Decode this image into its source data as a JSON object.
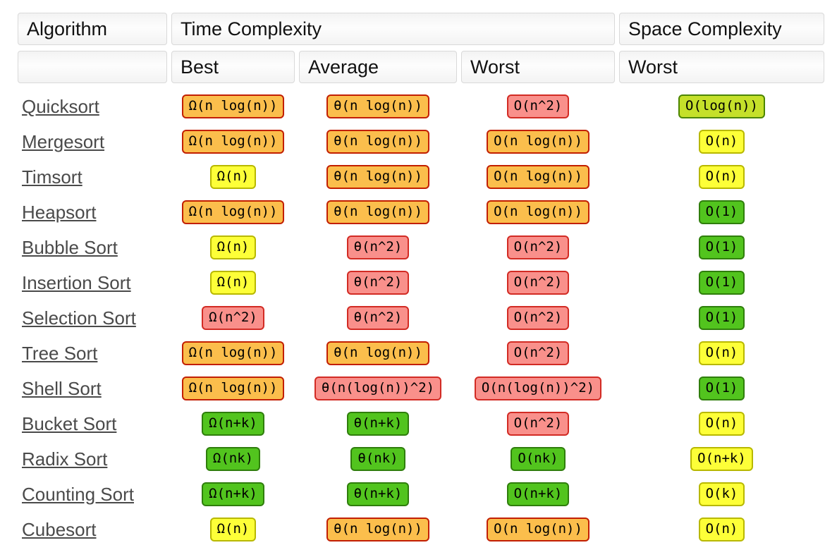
{
  "header": {
    "algorithm": "Algorithm",
    "time_complexity": "Time Complexity",
    "space_complexity": "Space Complexity",
    "sub_best": "Best",
    "sub_average": "Average",
    "sub_worst": "Worst",
    "sub_space_worst": "Worst"
  },
  "levels": {
    "green": {
      "bg": "#52c41e",
      "border": "#2f7e0c"
    },
    "yellowgreen": {
      "bg": "#c5e02a",
      "border": "#4c8500"
    },
    "yellow": {
      "bg": "#fdff38",
      "border": "#b8b800"
    },
    "orange": {
      "bg": "#fbbe4c",
      "border": "#c21f00"
    },
    "red": {
      "bg": "#f9908b",
      "border": "#d22b24"
    }
  },
  "rows": [
    {
      "name": "Quicksort",
      "best": {
        "text": "Ω(n log(n))",
        "level": "orange"
      },
      "average": {
        "text": "θ(n log(n))",
        "level": "orange"
      },
      "worst": {
        "text": "O(n^2)",
        "level": "red"
      },
      "space": {
        "text": "O(log(n))",
        "level": "yellowgreen"
      }
    },
    {
      "name": "Mergesort",
      "best": {
        "text": "Ω(n log(n))",
        "level": "orange"
      },
      "average": {
        "text": "θ(n log(n))",
        "level": "orange"
      },
      "worst": {
        "text": "O(n log(n))",
        "level": "orange"
      },
      "space": {
        "text": "O(n)",
        "level": "yellow"
      }
    },
    {
      "name": "Timsort",
      "best": {
        "text": "Ω(n)",
        "level": "yellow"
      },
      "average": {
        "text": "θ(n log(n))",
        "level": "orange"
      },
      "worst": {
        "text": "O(n log(n))",
        "level": "orange"
      },
      "space": {
        "text": "O(n)",
        "level": "yellow"
      }
    },
    {
      "name": "Heapsort",
      "best": {
        "text": "Ω(n log(n))",
        "level": "orange"
      },
      "average": {
        "text": "θ(n log(n))",
        "level": "orange"
      },
      "worst": {
        "text": "O(n log(n))",
        "level": "orange"
      },
      "space": {
        "text": "O(1)",
        "level": "green"
      }
    },
    {
      "name": "Bubble Sort",
      "best": {
        "text": "Ω(n)",
        "level": "yellow"
      },
      "average": {
        "text": "θ(n^2)",
        "level": "red"
      },
      "worst": {
        "text": "O(n^2)",
        "level": "red"
      },
      "space": {
        "text": "O(1)",
        "level": "green"
      }
    },
    {
      "name": "Insertion Sort",
      "best": {
        "text": "Ω(n)",
        "level": "yellow"
      },
      "average": {
        "text": "θ(n^2)",
        "level": "red"
      },
      "worst": {
        "text": "O(n^2)",
        "level": "red"
      },
      "space": {
        "text": "O(1)",
        "level": "green"
      }
    },
    {
      "name": "Selection Sort",
      "best": {
        "text": "Ω(n^2)",
        "level": "red"
      },
      "average": {
        "text": "θ(n^2)",
        "level": "red"
      },
      "worst": {
        "text": "O(n^2)",
        "level": "red"
      },
      "space": {
        "text": "O(1)",
        "level": "green"
      }
    },
    {
      "name": "Tree Sort",
      "best": {
        "text": "Ω(n log(n))",
        "level": "orange"
      },
      "average": {
        "text": "θ(n log(n))",
        "level": "orange"
      },
      "worst": {
        "text": "O(n^2)",
        "level": "red"
      },
      "space": {
        "text": "O(n)",
        "level": "yellow"
      }
    },
    {
      "name": "Shell Sort",
      "best": {
        "text": "Ω(n log(n))",
        "level": "orange"
      },
      "average": {
        "text": "θ(n(log(n))^2)",
        "level": "red"
      },
      "worst": {
        "text": "O(n(log(n))^2)",
        "level": "red"
      },
      "space": {
        "text": "O(1)",
        "level": "green"
      }
    },
    {
      "name": "Bucket Sort",
      "best": {
        "text": "Ω(n+k)",
        "level": "green"
      },
      "average": {
        "text": "θ(n+k)",
        "level": "green"
      },
      "worst": {
        "text": "O(n^2)",
        "level": "red"
      },
      "space": {
        "text": "O(n)",
        "level": "yellow"
      }
    },
    {
      "name": "Radix Sort",
      "best": {
        "text": "Ω(nk)",
        "level": "green"
      },
      "average": {
        "text": "θ(nk)",
        "level": "green"
      },
      "worst": {
        "text": "O(nk)",
        "level": "green"
      },
      "space": {
        "text": "O(n+k)",
        "level": "yellow"
      }
    },
    {
      "name": "Counting Sort",
      "best": {
        "text": "Ω(n+k)",
        "level": "green"
      },
      "average": {
        "text": "θ(n+k)",
        "level": "green"
      },
      "worst": {
        "text": "O(n+k)",
        "level": "green"
      },
      "space": {
        "text": "O(k)",
        "level": "yellow"
      }
    },
    {
      "name": "Cubesort",
      "best": {
        "text": "Ω(n)",
        "level": "yellow"
      },
      "average": {
        "text": "θ(n log(n))",
        "level": "orange"
      },
      "worst": {
        "text": "O(n log(n))",
        "level": "orange"
      },
      "space": {
        "text": "O(n)",
        "level": "yellow"
      }
    }
  ]
}
